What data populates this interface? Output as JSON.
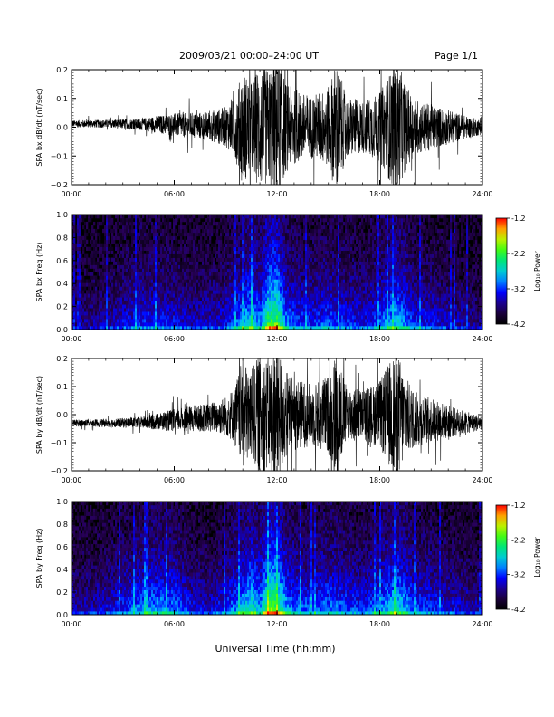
{
  "header": {
    "title": "2009/03/21   00:00–24:00 UT",
    "page": "Page 1/1"
  },
  "footer": {
    "xlabel": "Universal Time (hh:mm)"
  },
  "colorbar": {
    "ticks": [
      "-1.2",
      "-2.2",
      "-3.2",
      "-4.2"
    ],
    "label": "Log₁₀ Power"
  },
  "chart_data": [
    {
      "type": "line",
      "ylabel": "SPA bx dB/dt (nT/sec)",
      "ylim": [
        -0.2,
        0.2
      ],
      "yticks": [
        "0.2",
        "0.1",
        "0.0",
        "−0.1",
        "−0.2"
      ],
      "xticks": [
        "00:00",
        "06:00",
        "12:00",
        "18:00",
        "24:00"
      ],
      "xlim_hours": [
        0,
        24
      ],
      "envelope": {
        "hours": [
          0,
          2,
          4,
          5,
          6,
          7,
          8,
          9,
          9.5,
          10,
          10.5,
          11,
          11.5,
          12,
          12.5,
          13,
          14,
          15,
          15.5,
          16,
          17,
          18,
          18.5,
          19,
          19.5,
          20,
          21,
          22,
          23,
          24
        ],
        "amplitude": [
          0.012,
          0.014,
          0.02,
          0.03,
          0.04,
          0.045,
          0.05,
          0.07,
          0.1,
          0.2,
          0.16,
          0.22,
          0.2,
          0.26,
          0.16,
          0.13,
          0.11,
          0.14,
          0.24,
          0.11,
          0.09,
          0.12,
          0.18,
          0.24,
          0.15,
          0.1,
          0.08,
          0.06,
          0.04,
          0.025
        ],
        "offset": [
          0.012,
          0.012,
          0.01,
          0.01,
          0.008,
          0.006,
          0.004,
          0.002,
          0.0,
          0.0,
          0.0,
          0.0,
          0.0,
          0.0,
          0.0,
          0.0,
          0.0,
          0.0,
          0.0,
          0.0,
          0.0,
          0.0,
          0.0,
          0.0,
          0.0,
          0.0,
          0.0,
          0.0,
          0.0,
          0.0
        ]
      }
    },
    {
      "type": "heatmap",
      "ylabel": "SPA bx Freq (Hz)",
      "ylim": [
        0,
        1.0
      ],
      "yticks": [
        "1.0",
        "0.8",
        "0.6",
        "0.4",
        "0.2",
        "0.0"
      ],
      "xticks": [
        "00:00",
        "06:00",
        "12:00",
        "18:00",
        "24:00"
      ],
      "xlim_hours": [
        0,
        24
      ],
      "zlim": [
        -4.2,
        -1.2
      ],
      "activity": {
        "hours": [
          0,
          2,
          4,
          5,
          6,
          7,
          8,
          9,
          10,
          10.5,
          11,
          11.5,
          12,
          12.5,
          13,
          14,
          15,
          16,
          17,
          18,
          19,
          20,
          21,
          22,
          23,
          24
        ],
        "level": [
          0.25,
          0.3,
          0.45,
          0.45,
          0.4,
          0.35,
          0.35,
          0.4,
          0.6,
          0.75,
          0.55,
          0.95,
          1.0,
          0.6,
          0.5,
          0.45,
          0.5,
          0.45,
          0.4,
          0.5,
          0.7,
          0.45,
          0.4,
          0.35,
          0.3,
          0.25
        ]
      }
    },
    {
      "type": "line",
      "ylabel": "SPA by dB/dt (nT/sec)",
      "ylim": [
        -0.2,
        0.2
      ],
      "yticks": [
        "0.2",
        "0.1",
        "0.0",
        "−0.1",
        "−0.2"
      ],
      "xticks": [
        "00:00",
        "06:00",
        "12:00",
        "18:00",
        "24:00"
      ],
      "xlim_hours": [
        0,
        24
      ],
      "envelope": {
        "hours": [
          0,
          2,
          4,
          5,
          6,
          7,
          8,
          9,
          9.5,
          10,
          10.5,
          11,
          11.5,
          12,
          12.5,
          13,
          14,
          15,
          15.5,
          16,
          17,
          18,
          18.5,
          19,
          19.5,
          20,
          21,
          22,
          23,
          24
        ],
        "amplitude": [
          0.012,
          0.014,
          0.02,
          0.03,
          0.04,
          0.045,
          0.05,
          0.07,
          0.1,
          0.2,
          0.16,
          0.22,
          0.2,
          0.26,
          0.16,
          0.13,
          0.11,
          0.14,
          0.24,
          0.11,
          0.09,
          0.12,
          0.18,
          0.24,
          0.15,
          0.1,
          0.08,
          0.06,
          0.04,
          0.025
        ],
        "offset": [
          -0.03,
          -0.03,
          -0.028,
          -0.025,
          -0.02,
          -0.015,
          -0.01,
          -0.005,
          0.0,
          0.0,
          0.0,
          0.0,
          0.0,
          0.0,
          0.0,
          0.0,
          0.0,
          0.0,
          0.0,
          0.0,
          0.0,
          0.0,
          0.0,
          -0.005,
          -0.01,
          -0.015,
          -0.02,
          -0.025,
          -0.028,
          -0.03
        ]
      }
    },
    {
      "type": "heatmap",
      "ylabel": "SPA by Freq (Hz)",
      "ylim": [
        0,
        1.0
      ],
      "yticks": [
        "1.0",
        "0.8",
        "0.6",
        "0.4",
        "0.2",
        "0.0"
      ],
      "xticks": [
        "00:00",
        "06:00",
        "12:00",
        "18:00",
        "24:00"
      ],
      "xlim_hours": [
        0,
        24
      ],
      "zlim": [
        -4.2,
        -1.2
      ],
      "activity": {
        "hours": [
          0,
          2,
          4,
          5,
          6,
          7,
          8,
          9,
          10,
          10.5,
          11,
          11.5,
          12,
          12.5,
          13,
          14,
          15,
          16,
          17,
          18,
          19,
          20,
          21,
          22,
          23,
          24
        ],
        "level": [
          0.3,
          0.35,
          0.55,
          0.6,
          0.55,
          0.4,
          0.35,
          0.45,
          0.65,
          0.8,
          0.6,
          1.0,
          1.0,
          0.65,
          0.55,
          0.5,
          0.55,
          0.5,
          0.45,
          0.55,
          0.75,
          0.5,
          0.45,
          0.4,
          0.35,
          0.3
        ]
      }
    }
  ]
}
